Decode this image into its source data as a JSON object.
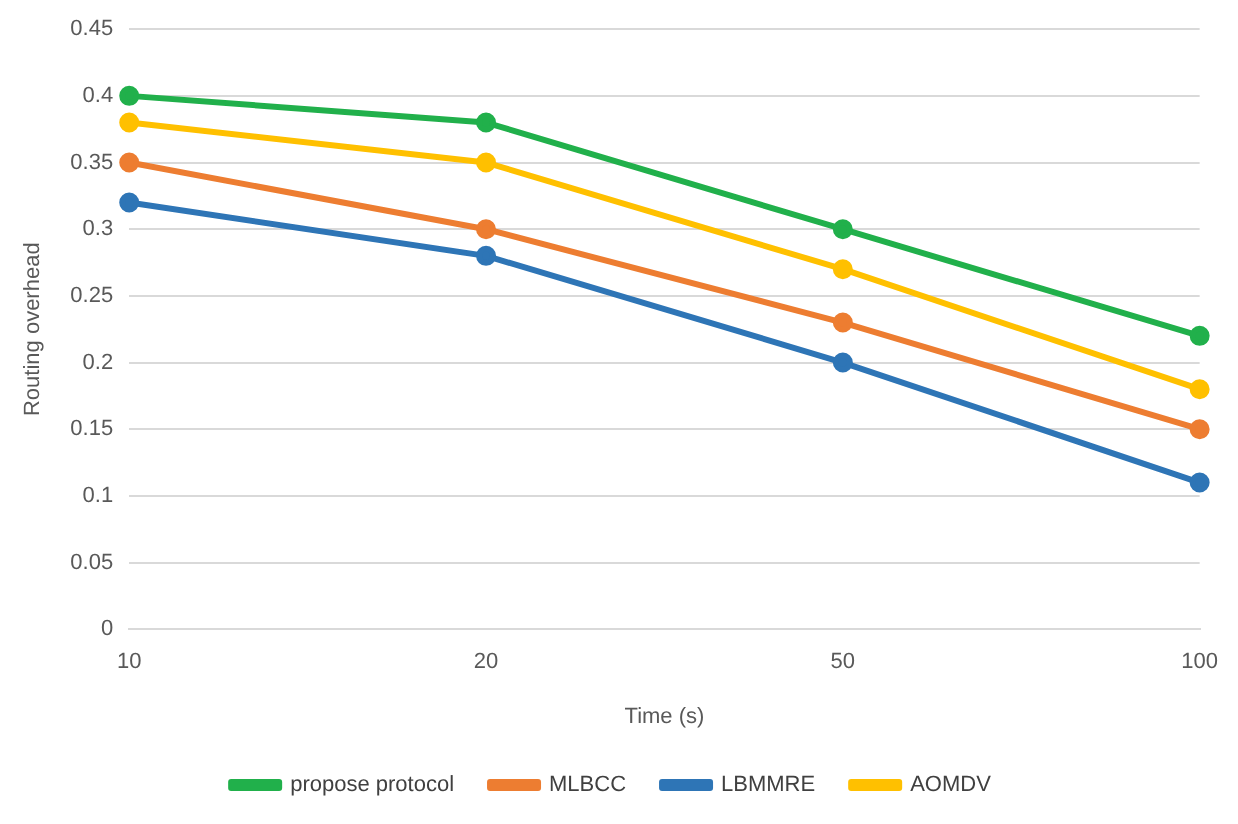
{
  "chart_data": {
    "type": "line",
    "xlabel": "Time (s)",
    "ylabel": "Routing overhead",
    "categories": [
      "10",
      "20",
      "50",
      "100"
    ],
    "series": [
      {
        "name": "propose protocol",
        "color": "#21b04b",
        "values": [
          0.4,
          0.38,
          0.3,
          0.22
        ]
      },
      {
        "name": "MLBCC",
        "color": "#ed7d31",
        "values": [
          0.35,
          0.3,
          0.23,
          0.15
        ]
      },
      {
        "name": "LBMMRE",
        "color": "#2e75b6",
        "values": [
          0.32,
          0.28,
          0.2,
          0.11
        ]
      },
      {
        "name": "AOMDV",
        "color": "#ffc000",
        "values": [
          0.38,
          0.35,
          0.27,
          0.18
        ]
      }
    ],
    "ylim": [
      0,
      0.45
    ],
    "yticks": [
      0,
      0.05,
      0.1,
      0.15,
      0.2,
      0.25,
      0.3,
      0.35,
      0.4,
      0.45
    ],
    "grid": "y",
    "legend": "bottom",
    "marker": "circle"
  }
}
